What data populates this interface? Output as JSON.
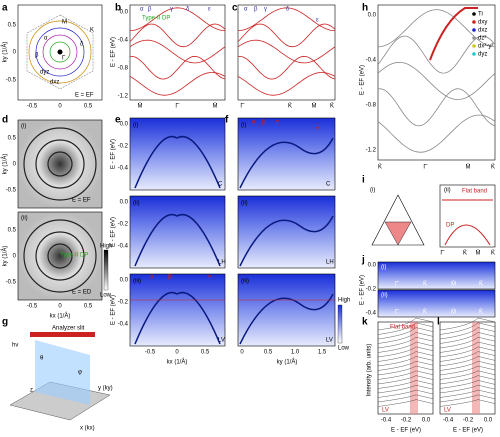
{
  "a": {
    "letter": "a",
    "ylabel": "ky (1/Å)",
    "xticks": [
      "-0.5",
      "0",
      "0.5"
    ],
    "yticks": [
      "0.5",
      "0",
      "-0.5"
    ],
    "labels": [
      "Γ",
      "M",
      "K",
      "α",
      "β",
      "δ",
      "dyz",
      "dxz"
    ],
    "note": "E = EF"
  },
  "b": {
    "letter": "b",
    "ylabel": "E - EF (eV)",
    "yticks": [
      "0.0",
      "-0.4",
      "-0.8",
      "-1.2"
    ],
    "xticks": [
      "M̄",
      "Γ̄",
      "M̄"
    ],
    "labels": [
      "Type-II DP",
      "α",
      "β",
      "γ",
      "δ",
      "ε"
    ]
  },
  "c": {
    "letter": "c",
    "xticks": [
      "Γ̄",
      "K̄",
      "M̄",
      "K̄"
    ],
    "labels": [
      "α",
      "β",
      "γ",
      "δ",
      "ε"
    ]
  },
  "h": {
    "letter": "h",
    "ylabel": "E - EF (eV)",
    "yticks": [
      "0.0",
      "-0.4",
      "-0.8",
      "-1.2"
    ],
    "xticks": [
      "K̄",
      "Γ̄",
      "M̄",
      "K̄"
    ],
    "legend": [
      "Ti",
      "dxy",
      "dxz",
      "dz²",
      "dx²-y²",
      "dyz"
    ]
  },
  "d": {
    "letter": "d",
    "ylabel": "ky (1/Å)",
    "xlabel": "kx (1/Å)",
    "xticks": [
      "-0.5",
      "0",
      "0.5"
    ],
    "yticks": [
      "0.5",
      "0",
      "-0.5"
    ],
    "sub": [
      "(i)",
      "(ii)"
    ],
    "notes": [
      "E = EF",
      "E = ED"
    ],
    "dp": "Type-II DP",
    "scale": [
      "High",
      "Low"
    ]
  },
  "e": {
    "letter": "e",
    "ylabel": "E - EF (eV)",
    "xlabel": "kx (1/Å)",
    "yticks": [
      "0.0",
      "-0.2",
      "-0.4"
    ],
    "xticks": [
      "-0.5",
      "0",
      "0.5"
    ],
    "sub": [
      "(i)",
      "(ii)",
      "(iii)"
    ],
    "pol": [
      "C",
      "LH",
      "LV"
    ],
    "labels": [
      "α",
      "β",
      "γ"
    ]
  },
  "f": {
    "letter": "f",
    "xlabel": "ky (1/Å)",
    "xticks": [
      "0",
      "0.5",
      "1.0",
      "1.5"
    ],
    "sub": [
      "(i)",
      "(ii)",
      "(iii)"
    ],
    "pol": [
      "C",
      "LH",
      "LV"
    ],
    "labels": [
      "α",
      "β",
      "γ",
      "δ"
    ],
    "scale": [
      "High",
      "Low"
    ]
  },
  "g": {
    "letter": "g",
    "labels": [
      "Analyzer slit",
      "hν",
      "θ",
      "φ",
      "y (ky)",
      "x (kx)",
      "z"
    ]
  },
  "i": {
    "letter": "i",
    "sub": [
      "(i)",
      "(ii)"
    ],
    "labels": [
      "Flat band",
      "DP"
    ],
    "xticks": [
      "Γ̄",
      "K̄",
      "M̄",
      "K̄"
    ]
  },
  "j": {
    "letter": "j",
    "ylabel": "E - EF (eV)",
    "yticks": [
      "0.0",
      "-0.2",
      "-0.4"
    ],
    "sub": [
      "(i)",
      "(ii)"
    ],
    "points": [
      "Γ̄",
      "K̄",
      "M̄",
      "K̄"
    ]
  },
  "k": {
    "letter": "k",
    "ylabel": "Intensity (arb. units)",
    "xlabel": "E - EF (eV)",
    "xticks": [
      "-0.4",
      "-0.2",
      "0.0"
    ],
    "note": "Flat band",
    "pol": "LV"
  },
  "l": {
    "letter": "l",
    "xlabel": "E - EF (eV)",
    "xticks": [
      "-0.4",
      "-0.2",
      "0.0"
    ],
    "pol": "LV"
  }
}
